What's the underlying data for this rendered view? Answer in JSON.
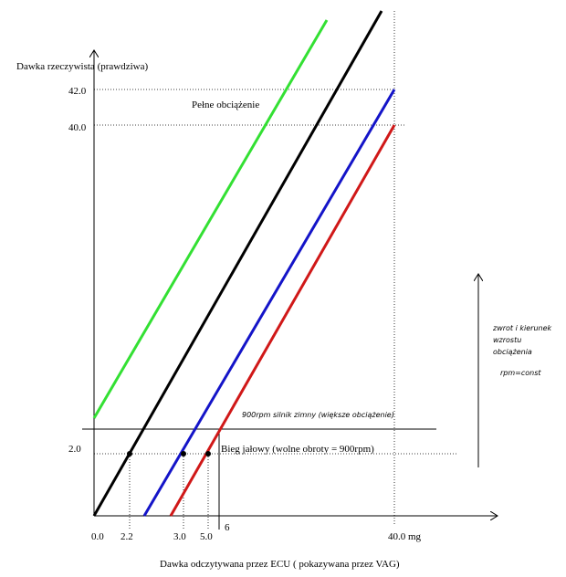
{
  "axes": {
    "y_title": "Dawka rzeczywista (prawdziwa)",
    "x_title": "Dawka odczytywana przez ECU ( pokazywana przez VAG)",
    "y_labels": [
      "42.0",
      "40.0",
      "2.0"
    ],
    "x_labels": [
      "0.0",
      "2.2",
      "3.0",
      "5.0",
      "6",
      "40.0 mg"
    ]
  },
  "annotations": {
    "full_load": "Pełne obciążenie",
    "cold": "900rpm silnik zimny (większe obciążenie)",
    "idle": "Bieg jałowy (wolne obroty = 900rpm)"
  },
  "side_note": [
    "zwrot i kierunek",
    "wzrostu",
    "obciążenia",
    "rpm=const"
  ]
}
